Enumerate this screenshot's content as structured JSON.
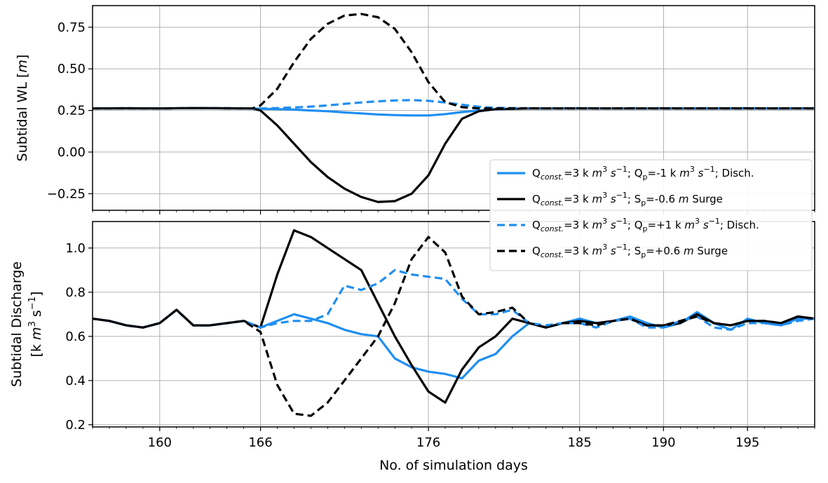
{
  "chart_data": [
    {
      "type": "line",
      "panel": "top",
      "ylabel_text": "Subtidal WL [",
      "ylabel_unit": "m",
      "ylabel_close": "]",
      "xlim": [
        156,
        199
      ],
      "ylim": [
        -0.35,
        0.88
      ],
      "yticks": [
        0.75,
        0.5,
        0.25,
        0.0,
        -0.25
      ],
      "ytick_labels": [
        "0.75",
        "0.50",
        "0.25",
        "0.00",
        "−0.25"
      ],
      "grid": true,
      "series": [
        {
          "key": "dis_neg",
          "color": "#1f8ef1",
          "dash": "solid",
          "x": [
            156,
            158,
            160,
            162,
            164,
            165.5,
            166,
            167,
            168,
            169,
            170,
            171,
            172,
            173,
            174,
            175,
            176,
            177,
            178,
            179,
            180,
            182,
            185,
            188,
            190,
            192,
            195,
            197,
            199
          ],
          "y": [
            0.262,
            0.263,
            0.262,
            0.264,
            0.263,
            0.262,
            0.26,
            0.258,
            0.255,
            0.25,
            0.245,
            0.238,
            0.232,
            0.226,
            0.222,
            0.22,
            0.22,
            0.228,
            0.24,
            0.25,
            0.257,
            0.262,
            0.263,
            0.262,
            0.263,
            0.262,
            0.263,
            0.262,
            0.263
          ]
        },
        {
          "key": "surge_neg",
          "color": "#000000",
          "dash": "solid",
          "x": [
            156,
            158,
            160,
            162,
            164,
            165.5,
            166,
            167,
            168,
            169,
            170,
            171,
            172,
            173,
            174,
            175,
            176,
            177,
            178,
            179,
            180,
            182,
            185,
            188,
            190,
            192,
            195,
            197,
            199
          ],
          "y": [
            0.262,
            0.263,
            0.262,
            0.264,
            0.263,
            0.262,
            0.25,
            0.16,
            0.05,
            -0.06,
            -0.15,
            -0.22,
            -0.27,
            -0.3,
            -0.295,
            -0.25,
            -0.14,
            0.05,
            0.2,
            0.245,
            0.258,
            0.262,
            0.263,
            0.262,
            0.263,
            0.262,
            0.263,
            0.262,
            0.263
          ]
        },
        {
          "key": "dis_pos",
          "color": "#1f8ef1",
          "dash": "dashed",
          "x": [
            156,
            158,
            160,
            162,
            164,
            165.5,
            166,
            167,
            168,
            169,
            170,
            171,
            172,
            173,
            174,
            175,
            176,
            177,
            178,
            179,
            180,
            182,
            185,
            188,
            190,
            192,
            195,
            197,
            199
          ],
          "y": [
            0.262,
            0.263,
            0.262,
            0.264,
            0.263,
            0.262,
            0.262,
            0.264,
            0.268,
            0.273,
            0.28,
            0.29,
            0.298,
            0.305,
            0.31,
            0.312,
            0.308,
            0.298,
            0.285,
            0.272,
            0.266,
            0.263,
            0.262,
            0.263,
            0.262,
            0.263,
            0.262,
            0.263,
            0.262
          ]
        },
        {
          "key": "surge_pos",
          "color": "#000000",
          "dash": "dashed",
          "x": [
            156,
            158,
            160,
            162,
            164,
            165.5,
            166,
            167,
            168,
            169,
            170,
            171,
            172,
            173,
            174,
            175,
            176,
            177,
            178,
            179,
            180,
            182,
            185,
            188,
            190,
            192,
            195,
            197,
            199
          ],
          "y": [
            0.262,
            0.263,
            0.262,
            0.264,
            0.263,
            0.262,
            0.28,
            0.38,
            0.54,
            0.68,
            0.77,
            0.82,
            0.83,
            0.81,
            0.74,
            0.6,
            0.42,
            0.3,
            0.27,
            0.262,
            0.262,
            0.263,
            0.262,
            0.263,
            0.262,
            0.263,
            0.262,
            0.263,
            0.262
          ]
        }
      ]
    },
    {
      "type": "line",
      "panel": "bottom",
      "ylabel_line1": "Subtidal Discharge",
      "ylabel_line2_pre": "[k ",
      "ylabel_line2_m": "m",
      "ylabel_line2_mid": " s",
      "ylabel_line2_close": "]",
      "ylabel_sup_3": "3",
      "ylabel_sup_neg1": "−1",
      "xlabel": "No. of simulation days",
      "xlim": [
        156,
        199
      ],
      "ylim": [
        0.19,
        1.12
      ],
      "yticks": [
        0.2,
        0.4,
        0.6,
        0.8,
        1.0
      ],
      "ytick_labels": [
        "0.2",
        "0.4",
        "0.6",
        "0.8",
        "1.0"
      ],
      "xticks": [
        160,
        166,
        176,
        185,
        190,
        195
      ],
      "xtick_labels": [
        "160",
        "166",
        "176",
        "185",
        "190",
        "195"
      ],
      "grid": true,
      "series": [
        {
          "key": "dis_neg",
          "color": "#1f8ef1",
          "dash": "solid",
          "x": [
            156,
            157,
            158,
            159,
            160,
            161,
            162,
            163,
            164,
            165,
            166,
            167,
            168,
            169,
            170,
            171,
            172,
            173,
            174,
            175,
            176,
            177,
            178,
            179,
            180,
            181,
            182,
            183,
            184,
            185,
            186,
            187,
            188,
            189,
            190,
            191,
            192,
            193,
            194,
            195,
            196,
            197,
            198,
            199
          ],
          "y": [
            0.68,
            0.67,
            0.65,
            0.64,
            0.66,
            0.72,
            0.65,
            0.65,
            0.66,
            0.67,
            0.64,
            0.67,
            0.7,
            0.68,
            0.66,
            0.63,
            0.61,
            0.6,
            0.5,
            0.46,
            0.44,
            0.43,
            0.41,
            0.49,
            0.52,
            0.6,
            0.66,
            0.64,
            0.66,
            0.68,
            0.66,
            0.67,
            0.69,
            0.66,
            0.64,
            0.66,
            0.71,
            0.66,
            0.63,
            0.68,
            0.66,
            0.65,
            0.68,
            0.68
          ]
        },
        {
          "key": "surge_neg",
          "color": "#000000",
          "dash": "solid",
          "x": [
            156,
            157,
            158,
            159,
            160,
            161,
            162,
            163,
            164,
            165,
            166,
            167,
            168,
            169,
            170,
            171,
            172,
            173,
            174,
            175,
            176,
            177,
            178,
            179,
            180,
            181,
            182,
            183,
            184,
            185,
            186,
            187,
            188,
            189,
            190,
            191,
            192,
            193,
            194,
            195,
            196,
            197,
            198,
            199
          ],
          "y": [
            0.68,
            0.67,
            0.65,
            0.64,
            0.66,
            0.72,
            0.65,
            0.65,
            0.66,
            0.67,
            0.64,
            0.88,
            1.08,
            1.05,
            1.0,
            0.95,
            0.9,
            0.75,
            0.6,
            0.47,
            0.35,
            0.3,
            0.45,
            0.55,
            0.6,
            0.68,
            0.66,
            0.64,
            0.66,
            0.67,
            0.66,
            0.67,
            0.68,
            0.65,
            0.65,
            0.66,
            0.7,
            0.66,
            0.65,
            0.67,
            0.67,
            0.66,
            0.69,
            0.68
          ]
        },
        {
          "key": "dis_pos",
          "color": "#1f8ef1",
          "dash": "dashed",
          "x": [
            156,
            157,
            158,
            159,
            160,
            161,
            162,
            163,
            164,
            165,
            166,
            167,
            168,
            169,
            170,
            171,
            172,
            173,
            174,
            175,
            176,
            177,
            178,
            179,
            180,
            181,
            182,
            183,
            184,
            185,
            186,
            187,
            188,
            189,
            190,
            191,
            192,
            193,
            194,
            195,
            196,
            197,
            198,
            199
          ],
          "y": [
            0.68,
            0.67,
            0.65,
            0.64,
            0.66,
            0.72,
            0.65,
            0.65,
            0.66,
            0.67,
            0.64,
            0.66,
            0.67,
            0.67,
            0.7,
            0.83,
            0.81,
            0.84,
            0.9,
            0.88,
            0.87,
            0.86,
            0.77,
            0.7,
            0.7,
            0.72,
            0.66,
            0.65,
            0.66,
            0.66,
            0.64,
            0.67,
            0.68,
            0.64,
            0.64,
            0.67,
            0.69,
            0.64,
            0.63,
            0.66,
            0.66,
            0.65,
            0.67,
            0.68
          ]
        },
        {
          "key": "surge_pos",
          "color": "#000000",
          "dash": "dashed",
          "x": [
            156,
            157,
            158,
            159,
            160,
            161,
            162,
            163,
            164,
            165,
            166,
            167,
            168,
            169,
            170,
            171,
            172,
            173,
            174,
            175,
            176,
            177,
            178,
            179,
            180,
            181,
            182,
            183,
            184,
            185,
            186,
            187,
            188,
            189,
            190,
            191,
            192,
            193,
            194,
            195,
            196,
            197,
            198,
            199
          ],
          "y": [
            0.68,
            0.67,
            0.65,
            0.64,
            0.66,
            0.72,
            0.65,
            0.65,
            0.66,
            0.67,
            0.62,
            0.38,
            0.25,
            0.24,
            0.3,
            0.4,
            0.5,
            0.6,
            0.75,
            0.95,
            1.05,
            0.98,
            0.78,
            0.7,
            0.71,
            0.73,
            0.66,
            0.64,
            0.66,
            0.66,
            0.65,
            0.67,
            0.68,
            0.65,
            0.65,
            0.67,
            0.69,
            0.66,
            0.65,
            0.67,
            0.67,
            0.66,
            0.69,
            0.68
          ]
        }
      ]
    }
  ],
  "legend": {
    "placement": "right-middle",
    "entries": [
      {
        "key": "dis_neg",
        "Q": "Q",
        "sub": "const.",
        "mid": "=3 k ",
        "m": "m",
        "sup3": "3",
        "s": " s",
        "supneg": "−1",
        "rest": "; Q",
        "sub2": "p",
        "tail": "=-1 k ",
        "m2": "m",
        "sup3b": "3",
        "s2": " s",
        "supneg2": "−1",
        "end": "; Disch."
      },
      {
        "key": "surge_neg",
        "Q": "Q",
        "sub": "const.",
        "mid": "=3 k ",
        "m": "m",
        "sup3": "3",
        "s": " s",
        "supneg": "−1",
        "rest": "; S",
        "sub2": "p",
        "tail": "=-0.6 ",
        "m2": "m",
        "end": " Surge"
      },
      {
        "key": "dis_pos",
        "Q": "Q",
        "sub": "const.",
        "mid": "=3 k ",
        "m": "m",
        "sup3": "3",
        "s": " s",
        "supneg": "−1",
        "rest": "; Q",
        "sub2": "p",
        "tail": "=+1 k ",
        "m2": "m",
        "sup3b": "3",
        "s2": " s",
        "supneg2": "−1",
        "end": "; Disch."
      },
      {
        "key": "surge_pos",
        "Q": "Q",
        "sub": "const.",
        "mid": "=3 k ",
        "m": "m",
        "sup3": "3",
        "s": " s",
        "supneg": "−1",
        "rest": "; S",
        "sub2": "p",
        "tail": "=+0.6 ",
        "m2": "m",
        "end": " Surge"
      }
    ]
  }
}
